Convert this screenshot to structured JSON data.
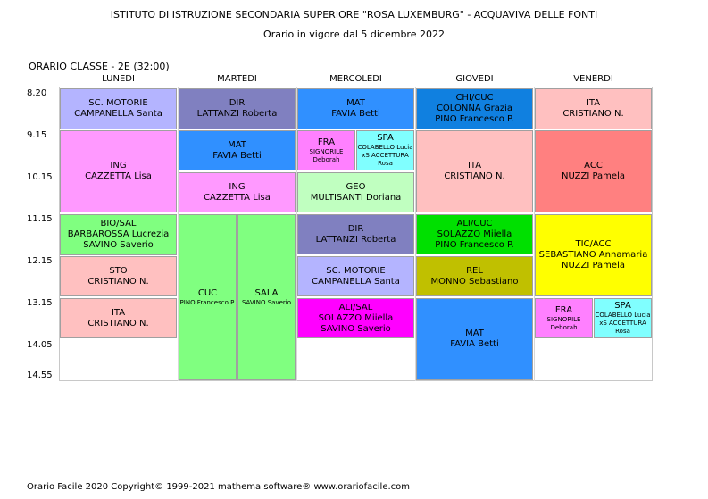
{
  "header": {
    "title": "ISTITUTO DI ISTRUZIONE SECONDARIA SUPERIORE \"ROSA LUXEMBURG\" - ACQUAVIVA DELLE FONTI",
    "subtitle": "Orario in vigore dal 5 dicembre 2022",
    "class_label": "ORARIO CLASSE   -  2E  (32:00)"
  },
  "days": [
    "LUNEDI",
    "MARTEDI",
    "MERCOLEDI",
    "GIOVEDI",
    "VENERDI"
  ],
  "times": [
    "8.20",
    "9.15",
    "10.15",
    "11.15",
    "12.15",
    "13.15",
    "14.05",
    "14.55"
  ],
  "lessons": {
    "mon_1": {
      "subject": "SC. MOTORIE",
      "teacher": "CAMPANELLA Santa",
      "color": "#b4b4ff"
    },
    "mon_2": {
      "subject": "ING",
      "teacher": "CAZZETTA Lisa",
      "color": "#ff99ff"
    },
    "mon_3": {
      "subject": "BIO/SAL",
      "teacher": "BARBAROSSA Lucrezia",
      "teacher2": "SAVINO Saverio",
      "color": "#80ff80"
    },
    "mon_4": {
      "subject": "STO",
      "teacher": "CRISTIANO N.",
      "color": "#ffc0c0"
    },
    "mon_5": {
      "subject": "ITA",
      "teacher": "CRISTIANO N.",
      "color": "#ffc0c0"
    },
    "tue_1": {
      "subject": "DIR",
      "teacher": "LATTANZI Roberta",
      "color": "#8080c0"
    },
    "tue_2": {
      "subject": "MAT",
      "teacher": "FAVIA Betti",
      "color": "#3090ff"
    },
    "tue_3": {
      "subject": "ING",
      "teacher": "CAZZETTA Lisa",
      "color": "#ff99ff"
    },
    "tue_4a": {
      "subject": "CUC",
      "teacher": "PINO  Francesco P.",
      "color": "#80ff80"
    },
    "tue_4b": {
      "subject": "SALA",
      "teacher": "SAVINO Saverio",
      "color": "#80ff80"
    },
    "wed_1": {
      "subject": "MAT",
      "teacher": "FAVIA Betti",
      "color": "#3090ff"
    },
    "wed_2a": {
      "subject": "FRA",
      "teacher": "SIGNORILE Deborah",
      "color": "#ff80ff"
    },
    "wed_2b": {
      "subject": "SPA",
      "teacher": "COLABELLO  Lucia",
      "teacher2": "xS ACCETTURA Rosa",
      "color": "#80ffff"
    },
    "wed_3": {
      "subject": "GEO",
      "teacher": "MULTISANTI Doriana",
      "color": "#c0ffc0"
    },
    "wed_4": {
      "subject": "DIR",
      "teacher": "LATTANZI Roberta",
      "color": "#8080c0"
    },
    "wed_5": {
      "subject": "SC. MOTORIE",
      "teacher": "CAMPANELLA Santa",
      "color": "#b4b4ff"
    },
    "wed_6": {
      "subject": "ALI/SAL",
      "teacher": "SOLAZZO Miiella",
      "teacher2": "SAVINO Saverio",
      "color": "#ff00ff"
    },
    "thu_1": {
      "subject": "CHI/CUC",
      "teacher": "COLONNA Grazia",
      "teacher2": "PINO  Francesco P.",
      "color": "#1080e0"
    },
    "thu_2": {
      "subject": "ITA",
      "teacher": "CRISTIANO N.",
      "color": "#ffc0c0"
    },
    "thu_3": {
      "subject": "ALI/CUC",
      "teacher": "SOLAZZO Miiella",
      "teacher2": "PINO  Francesco P.",
      "color": "#00e000"
    },
    "thu_4": {
      "subject": "REL",
      "teacher": "MONNO Sebastiano",
      "color": "#c0c000"
    },
    "thu_5": {
      "subject": "MAT",
      "teacher": "FAVIA Betti",
      "color": "#3090ff"
    },
    "fri_1": {
      "subject": "ITA",
      "teacher": "CRISTIANO N.",
      "color": "#ffc0c0"
    },
    "fri_2": {
      "subject": "ACC",
      "teacher": "NUZZI Pamela",
      "color": "#ff8080"
    },
    "fri_3": {
      "subject": "TIC/ACC",
      "teacher": "SEBASTIANO Annamaria",
      "teacher2": "NUZZI Pamela",
      "color": "#ffff00"
    },
    "fri_4a": {
      "subject": "FRA",
      "teacher": "SIGNORILE Deborah",
      "color": "#ff80ff"
    },
    "fri_4b": {
      "subject": "SPA",
      "teacher": "COLABELLO  Lucia",
      "teacher2": "xS ACCETTURA Rosa",
      "color": "#80ffff"
    }
  },
  "footer": "Orario Facile 2020  Copyright© 1999-2021 mathema software®     www.orariofacile.com"
}
